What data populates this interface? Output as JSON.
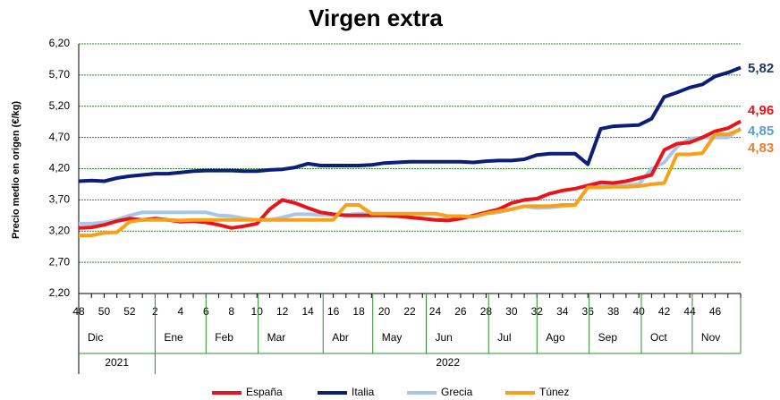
{
  "chart_data": {
    "type": "line",
    "title": "Virgen extra",
    "y_label": "Precio medio en origen (€/kg)",
    "categories": [
      48,
      null,
      50,
      null,
      52,
      null,
      2,
      null,
      4,
      null,
      6,
      null,
      8,
      null,
      10,
      null,
      12,
      null,
      14,
      null,
      16,
      null,
      18,
      null,
      20,
      null,
      22,
      null,
      24,
      null,
      26,
      null,
      28,
      null,
      30,
      null,
      32,
      null,
      34,
      null,
      36,
      null,
      38,
      null,
      40,
      null,
      42,
      null,
      44,
      null,
      46,
      null,
      null
    ],
    "months": [
      "Dic",
      "Ene",
      "Feb",
      "Mar",
      "Abr",
      "May",
      "Jun",
      "Jul",
      "Ago",
      "Sep",
      "Oct",
      "Nov"
    ],
    "years": [
      "2021",
      "2022"
    ],
    "ylim": [
      2.2,
      6.2
    ],
    "yticks": [
      {
        "value": 2.2,
        "label": "2,20"
      },
      {
        "value": 2.7,
        "label": "2,70"
      },
      {
        "value": 3.2,
        "label": "3,20"
      },
      {
        "value": 3.7,
        "label": "3,70"
      },
      {
        "value": 4.2,
        "label": "4,20"
      },
      {
        "value": 4.7,
        "label": "4,70"
      },
      {
        "value": 5.2,
        "label": "5,20"
      },
      {
        "value": 5.7,
        "label": "5,70"
      },
      {
        "value": 6.2,
        "label": "6,20"
      }
    ],
    "grid": true,
    "legend": "bottom",
    "series": [
      {
        "name": "España",
        "color": "#e8141b",
        "label_color": "#e8141b",
        "last_label": "4,96",
        "values": [
          3.25,
          3.26,
          3.3,
          3.36,
          3.4,
          3.38,
          3.4,
          3.38,
          3.35,
          3.36,
          3.34,
          3.3,
          3.25,
          3.28,
          3.32,
          3.55,
          3.7,
          3.65,
          3.57,
          3.5,
          3.47,
          3.45,
          3.45,
          3.45,
          3.45,
          3.44,
          3.42,
          3.4,
          3.38,
          3.37,
          3.4,
          3.45,
          3.5,
          3.55,
          3.65,
          3.7,
          3.72,
          3.8,
          3.85,
          3.88,
          3.93,
          3.98,
          3.97,
          4.0,
          4.05,
          4.1,
          4.5,
          4.6,
          4.62,
          4.7,
          4.8,
          4.85,
          4.96
        ]
      },
      {
        "name": "Italia",
        "color": "#0d1e78",
        "label_color": "#1f3864",
        "last_label": "5,82",
        "values": [
          4.0,
          4.01,
          4.0,
          4.05,
          4.08,
          4.1,
          4.12,
          4.12,
          4.14,
          4.16,
          4.17,
          4.17,
          4.17,
          4.16,
          4.16,
          4.18,
          4.19,
          4.22,
          4.28,
          4.25,
          4.25,
          4.25,
          4.25,
          4.26,
          4.29,
          4.3,
          4.31,
          4.31,
          4.31,
          4.31,
          4.31,
          4.3,
          4.32,
          4.33,
          4.33,
          4.35,
          4.42,
          4.44,
          4.44,
          4.44,
          4.27,
          4.84,
          4.88,
          4.89,
          4.9,
          5.0,
          5.35,
          5.42,
          5.5,
          5.55,
          5.68,
          5.74,
          5.82
        ]
      },
      {
        "name": "Grecia",
        "color": "#a8c6e8",
        "label_color": "#5b9bd5",
        "last_label": "4,85",
        "values": [
          3.32,
          3.32,
          3.34,
          3.38,
          3.45,
          3.5,
          3.5,
          3.5,
          3.5,
          3.5,
          3.5,
          3.45,
          3.44,
          3.4,
          3.38,
          3.38,
          3.42,
          3.47,
          3.47,
          3.46,
          3.46,
          3.46,
          3.48,
          3.48,
          3.47,
          3.45,
          3.42,
          3.4,
          3.38,
          3.4,
          3.42,
          3.43,
          3.48,
          3.5,
          3.55,
          3.6,
          3.57,
          3.58,
          3.6,
          3.62,
          3.9,
          3.92,
          3.92,
          3.93,
          3.95,
          4.2,
          4.3,
          4.55,
          4.68,
          4.7,
          4.7,
          4.7,
          4.85
        ]
      },
      {
        "name": "Túnez",
        "color": "#f7a11a",
        "label_color": "#ed7d31",
        "last_label": "4,83",
        "values": [
          3.13,
          3.13,
          3.17,
          3.18,
          3.35,
          3.38,
          3.38,
          3.38,
          3.37,
          3.38,
          3.38,
          3.38,
          3.38,
          3.38,
          3.38,
          3.38,
          3.38,
          3.38,
          3.38,
          3.38,
          3.38,
          3.62,
          3.62,
          3.48,
          3.48,
          3.48,
          3.48,
          3.48,
          3.48,
          3.44,
          3.44,
          3.43,
          3.48,
          3.52,
          3.55,
          3.6,
          3.6,
          3.6,
          3.62,
          3.62,
          3.9,
          3.9,
          3.91,
          3.91,
          3.92,
          3.95,
          3.97,
          4.43,
          4.43,
          4.45,
          4.75,
          4.75,
          4.83
        ]
      }
    ]
  }
}
